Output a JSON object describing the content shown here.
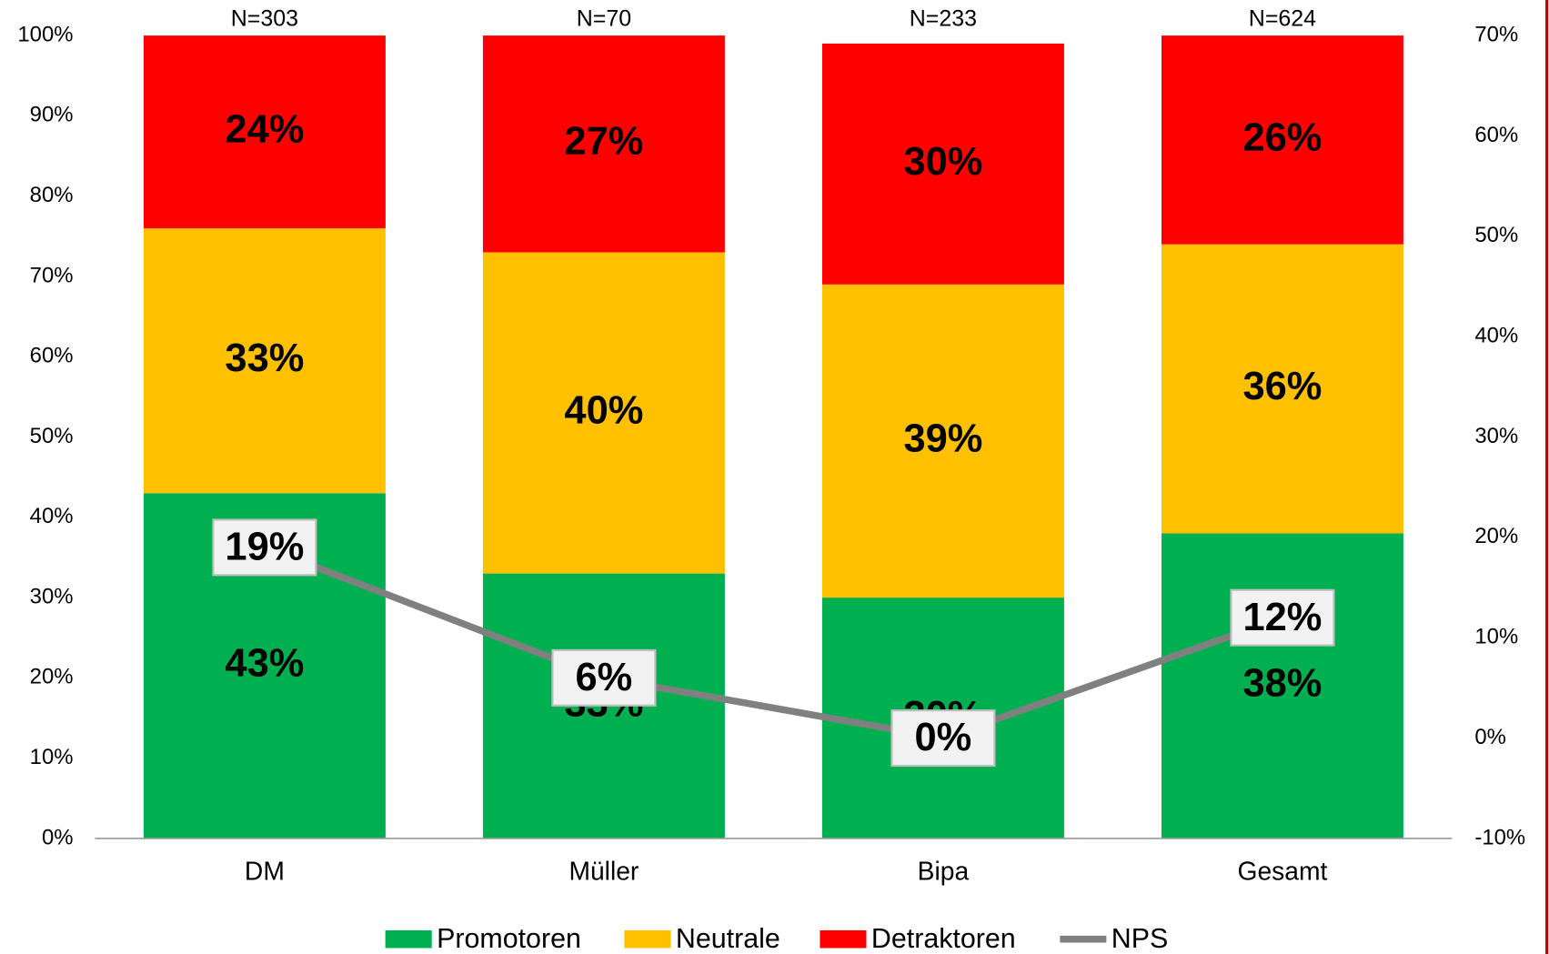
{
  "chart_data": {
    "type": "bar",
    "stacked": true,
    "categories": [
      "DM",
      "Müller",
      "Bipa",
      "Gesamt"
    ],
    "annotations": [
      "N=303",
      "N=70",
      "N=233",
      "N=624"
    ],
    "series": [
      {
        "name": "Promotoren",
        "color": "#00b050",
        "values": [
          43,
          33,
          30,
          38
        ],
        "value_labels": [
          "43%",
          "33%",
          "30%",
          "38%"
        ]
      },
      {
        "name": "Neutrale",
        "color": "#ffc000",
        "values": [
          33,
          40,
          39,
          36
        ],
        "value_labels": [
          "33%",
          "40%",
          "39%",
          "36%"
        ]
      },
      {
        "name": "Detraktoren",
        "color": "#ff0000",
        "values": [
          24,
          27,
          30,
          26
        ],
        "value_labels": [
          "24%",
          "27%",
          "30%",
          "26%"
        ]
      },
      {
        "name": "NPS",
        "type": "line",
        "axis": "y2",
        "color": "#808080",
        "values": [
          19,
          6,
          0,
          12
        ],
        "value_labels": [
          "19%",
          "6%",
          "0%",
          "12%"
        ]
      }
    ],
    "ylim": [
      0,
      100
    ],
    "yticks": [
      {
        "value": 0,
        "label": "0%"
      },
      {
        "value": 10,
        "label": "10%"
      },
      {
        "value": 20,
        "label": "20%"
      },
      {
        "value": 30,
        "label": "30%"
      },
      {
        "value": 40,
        "label": "40%"
      },
      {
        "value": 50,
        "label": "50%"
      },
      {
        "value": 60,
        "label": "60%"
      },
      {
        "value": 70,
        "label": "70%"
      },
      {
        "value": 80,
        "label": "80%"
      },
      {
        "value": 90,
        "label": "90%"
      },
      {
        "value": 100,
        "label": "100%"
      }
    ],
    "y2lim": [
      -10,
      70
    ],
    "y2ticks": [
      {
        "value": -10,
        "label": "-10%"
      },
      {
        "value": 0,
        "label": "0%"
      },
      {
        "value": 10,
        "label": "10%"
      },
      {
        "value": 20,
        "label": "20%"
      },
      {
        "value": 30,
        "label": "30%"
      },
      {
        "value": 40,
        "label": "40%"
      },
      {
        "value": 50,
        "label": "50%"
      },
      {
        "value": 60,
        "label": "60%"
      },
      {
        "value": 70,
        "label": "70%"
      }
    ],
    "legend": "bottom"
  }
}
